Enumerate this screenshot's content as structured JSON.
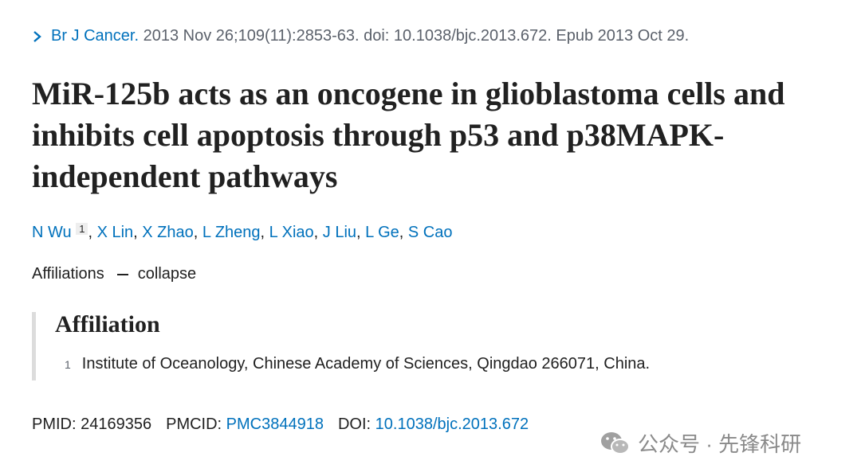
{
  "citation": {
    "journal": "Br J Cancer.",
    "details": "2013 Nov 26;109(11):2853-63. doi: 10.1038/bjc.2013.672. Epub 2013 Oct 29."
  },
  "title": "MiR-125b acts as an oncogene in glioblastoma cells and inhibits cell apoptosis through p53 and p38MAPK-independent pathways",
  "authors": {
    "separator": ", ",
    "list": [
      {
        "name": "N Wu",
        "affiliation": "1"
      },
      {
        "name": "X Lin"
      },
      {
        "name": "X Zhao"
      },
      {
        "name": "L Zheng"
      },
      {
        "name": "L Xiao"
      },
      {
        "name": "J Liu"
      },
      {
        "name": "L Ge"
      },
      {
        "name": "S Cao"
      }
    ]
  },
  "affiliations": {
    "label": "Affiliations",
    "toggle": "collapse",
    "heading": "Affiliation",
    "items": [
      {
        "number": "1",
        "text": "Institute of Oceanology, Chinese Academy of Sciences, Qingdao 266071, China."
      }
    ]
  },
  "identifiers": [
    {
      "label": "PMID:",
      "value": "24169356"
    },
    {
      "label": "PMCID:",
      "value": "PMC3844918",
      "link": true
    },
    {
      "label": "DOI:",
      "value": "10.1038/bjc.2013.672",
      "link": true
    }
  ],
  "watermark": "公众号 · 先锋科研"
}
